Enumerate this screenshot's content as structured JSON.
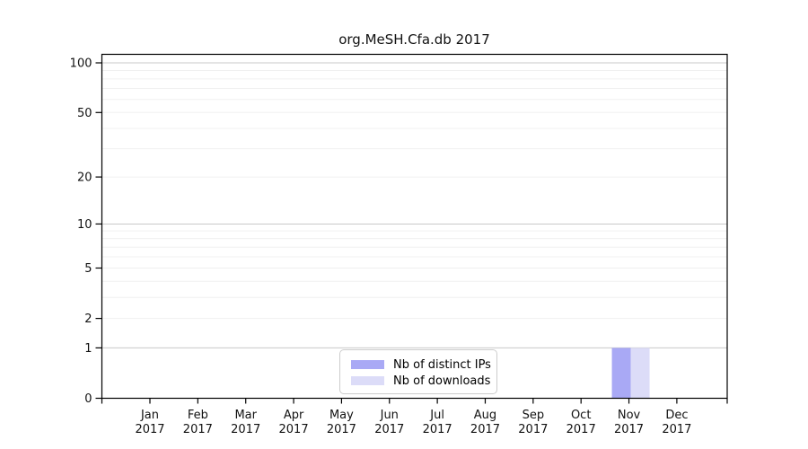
{
  "chart_data": {
    "type": "bar",
    "title": "org.MeSH.Cfa.db 2017",
    "x_months": [
      "Jan",
      "Feb",
      "Mar",
      "Apr",
      "May",
      "Jun",
      "Jul",
      "Aug",
      "Sep",
      "Oct",
      "Nov",
      "Dec"
    ],
    "x_year": "2017",
    "series": [
      {
        "name": "Nb of distinct IPs",
        "color": "#a9a9f5",
        "values": [
          0,
          0,
          0,
          0,
          0,
          0,
          0,
          0,
          0,
          0,
          1,
          0
        ]
      },
      {
        "name": "Nb of downloads",
        "color": "#dcdcf8",
        "values": [
          0,
          0,
          0,
          0,
          0,
          0,
          0,
          0,
          0,
          0,
          1,
          0
        ]
      }
    ],
    "y_ticks": [
      0,
      1,
      2,
      5,
      10,
      20,
      50,
      100
    ],
    "y_scale": "log1p",
    "ylim": [
      0,
      114
    ],
    "grid": true,
    "legend_position": "lower center inside",
    "colors": {
      "axis": "#000000",
      "tick_label": "#111111",
      "grid_major": "#c8c8c8",
      "grid_minor": "#f0f0f0",
      "legend_border": "#cccccc"
    }
  }
}
